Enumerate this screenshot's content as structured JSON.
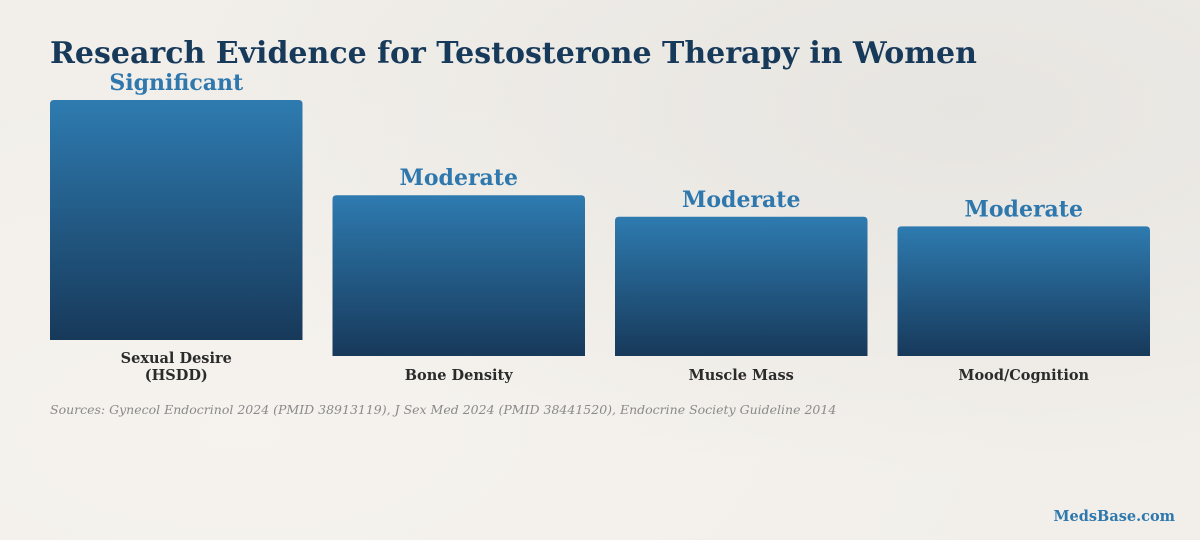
{
  "chart_data": {
    "type": "bar",
    "title": "Research Evidence for Testosterone Therapy in Women",
    "categories": [
      [
        "Sexual Desire",
        "(HSDD)"
      ],
      [
        "Bone Density"
      ],
      [
        "Muscle Mass"
      ],
      [
        "Mood/Cognition"
      ]
    ],
    "values": [
      1.0,
      0.67,
      0.58,
      0.54
    ],
    "data_labels": [
      "Significant",
      "Moderate",
      "Moderate",
      "Moderate"
    ],
    "ylim": [
      0,
      1
    ],
    "grid": false,
    "colors": {
      "bar_top": "#2e7bb0",
      "bar_bottom": "#17395a",
      "label": "#2e78ae"
    }
  },
  "footer": {
    "sources": "Sources: Gynecol Endocrinol 2024 (PMID 38913119), J Sex Med 2024 (PMID 38441520), Endocrine Society Guideline 2014",
    "brand": "MedsBase.com"
  }
}
